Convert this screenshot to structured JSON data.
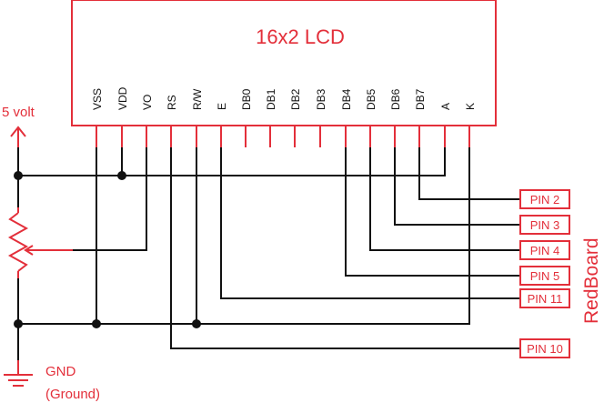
{
  "lcd": {
    "title": "16x2 LCD",
    "pins": [
      "VSS",
      "VDD",
      "VO",
      "RS",
      "R/W",
      "E",
      "DB0",
      "DB1",
      "DB2",
      "DB3",
      "DB4",
      "DB5",
      "DB6",
      "DB7",
      "A",
      "K"
    ]
  },
  "power": {
    "supply_label": "5 volt",
    "ground_label": "GND",
    "ground_note": "(Ground)"
  },
  "board": {
    "name": "RedBoard",
    "pins": [
      "PIN 2",
      "PIN 3",
      "PIN 4",
      "PIN 5",
      "PIN 11",
      "PIN 10"
    ]
  },
  "colors": {
    "accent": "#e32f3a",
    "wire": "#111111"
  }
}
